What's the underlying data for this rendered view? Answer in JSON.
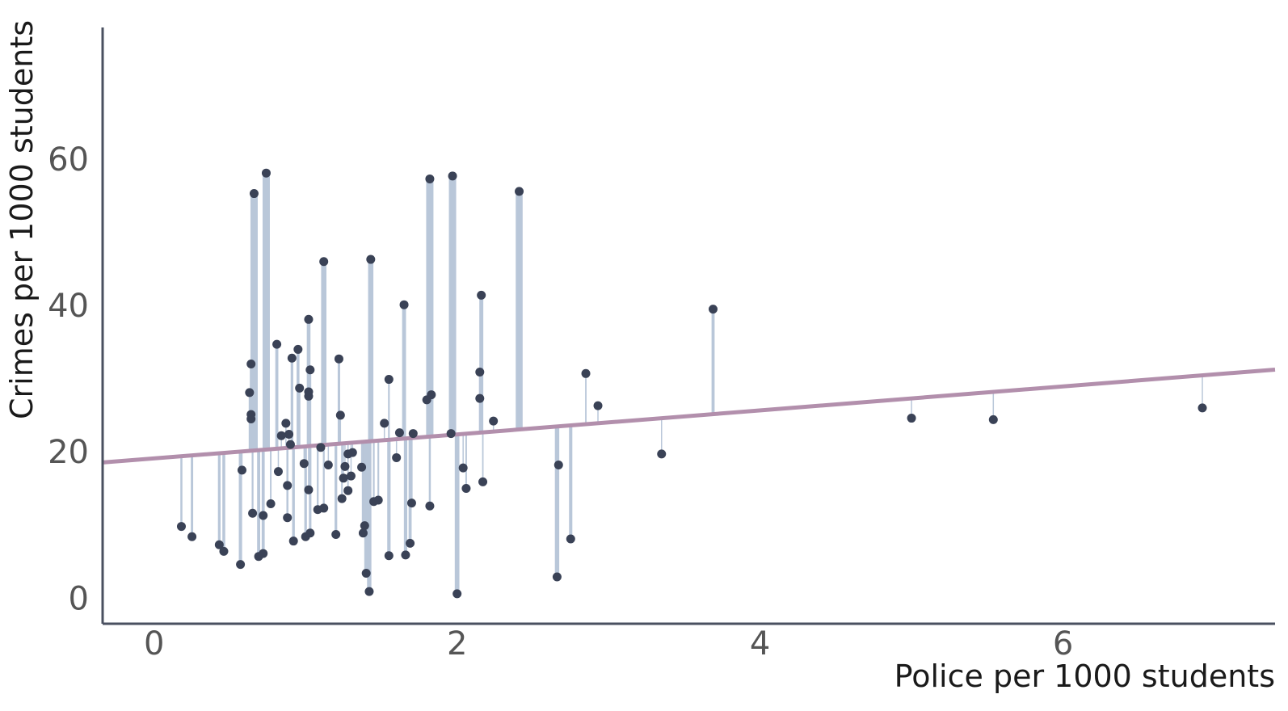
{
  "chart_data": {
    "type": "scatter",
    "title": "",
    "xlabel": "Police per 1000 students",
    "ylabel": "Crimes per 1000 students",
    "xlim": [
      -0.34,
      7.4
    ],
    "ylim": [
      -3.5,
      78
    ],
    "x_ticks": [
      0,
      2,
      4,
      6
    ],
    "y_ticks": [
      0,
      20,
      40,
      60
    ],
    "grid": false,
    "legend": "none",
    "fit_line": {
      "intercept": 19.1,
      "slope": 1.64
    },
    "colors": {
      "points": "#3a4256",
      "residuals": "#b9c7d9",
      "fit_line": "#b28fac",
      "axes": "#4a5060"
    },
    "points": [
      [
        0.18,
        9.8
      ],
      [
        0.25,
        8.4
      ],
      [
        0.43,
        7.3
      ],
      [
        0.46,
        6.4
      ],
      [
        0.57,
        4.6
      ],
      [
        0.58,
        17.5
      ],
      [
        0.63,
        28.1
      ],
      [
        0.64,
        32.0
      ],
      [
        0.64,
        25.1
      ],
      [
        0.64,
        24.5
      ],
      [
        0.65,
        11.6
      ],
      [
        0.66,
        55.3
      ],
      [
        0.69,
        5.7
      ],
      [
        0.72,
        6.1
      ],
      [
        0.72,
        11.3
      ],
      [
        0.74,
        58.1
      ],
      [
        0.77,
        12.9
      ],
      [
        0.81,
        34.7
      ],
      [
        0.82,
        17.3
      ],
      [
        0.84,
        22.2
      ],
      [
        0.87,
        23.9
      ],
      [
        0.88,
        15.4
      ],
      [
        0.88,
        11.0
      ],
      [
        0.89,
        22.4
      ],
      [
        0.9,
        21.0
      ],
      [
        0.91,
        32.8
      ],
      [
        0.92,
        7.8
      ],
      [
        0.95,
        34.0
      ],
      [
        0.96,
        28.7
      ],
      [
        0.99,
        18.4
      ],
      [
        1.0,
        8.4
      ],
      [
        1.02,
        38.1
      ],
      [
        1.02,
        28.2
      ],
      [
        1.02,
        27.6
      ],
      [
        1.02,
        14.8
      ],
      [
        1.03,
        31.2
      ],
      [
        1.03,
        8.9
      ],
      [
        1.08,
        12.1
      ],
      [
        1.1,
        20.6
      ],
      [
        1.12,
        12.3
      ],
      [
        1.12,
        46.0
      ],
      [
        1.15,
        18.2
      ],
      [
        1.2,
        8.7
      ],
      [
        1.22,
        32.7
      ],
      [
        1.23,
        25.0
      ],
      [
        1.24,
        13.6
      ],
      [
        1.25,
        16.4
      ],
      [
        1.26,
        18.0
      ],
      [
        1.28,
        14.7
      ],
      [
        1.28,
        19.7
      ],
      [
        1.3,
        16.7
      ],
      [
        1.31,
        19.9
      ],
      [
        1.37,
        17.9
      ],
      [
        1.38,
        8.9
      ],
      [
        1.39,
        9.9
      ],
      [
        1.4,
        3.4
      ],
      [
        1.42,
        0.9
      ],
      [
        1.43,
        46.3
      ],
      [
        1.45,
        13.2
      ],
      [
        1.48,
        13.4
      ],
      [
        1.52,
        23.9
      ],
      [
        1.55,
        29.9
      ],
      [
        1.55,
        5.8
      ],
      [
        1.6,
        19.2
      ],
      [
        1.62,
        22.6
      ],
      [
        1.65,
        40.1
      ],
      [
        1.66,
        5.9
      ],
      [
        1.69,
        7.5
      ],
      [
        1.7,
        13.0
      ],
      [
        1.71,
        22.5
      ],
      [
        1.8,
        27.1
      ],
      [
        1.82,
        57.3
      ],
      [
        1.82,
        12.6
      ],
      [
        1.83,
        27.8
      ],
      [
        1.96,
        22.5
      ],
      [
        1.97,
        57.7
      ],
      [
        2.0,
        0.6
      ],
      [
        2.04,
        17.8
      ],
      [
        2.06,
        15.0
      ],
      [
        2.15,
        30.9
      ],
      [
        2.15,
        27.3
      ],
      [
        2.16,
        41.4
      ],
      [
        2.17,
        15.9
      ],
      [
        2.24,
        24.2
      ],
      [
        2.41,
        55.6
      ],
      [
        2.66,
        2.9
      ],
      [
        2.67,
        18.2
      ],
      [
        2.75,
        8.1
      ],
      [
        2.85,
        30.7
      ],
      [
        2.93,
        26.3
      ],
      [
        3.35,
        19.7
      ],
      [
        3.69,
        39.5
      ],
      [
        5.0,
        24.6
      ],
      [
        5.54,
        24.4
      ],
      [
        6.92,
        26.0
      ]
    ]
  }
}
